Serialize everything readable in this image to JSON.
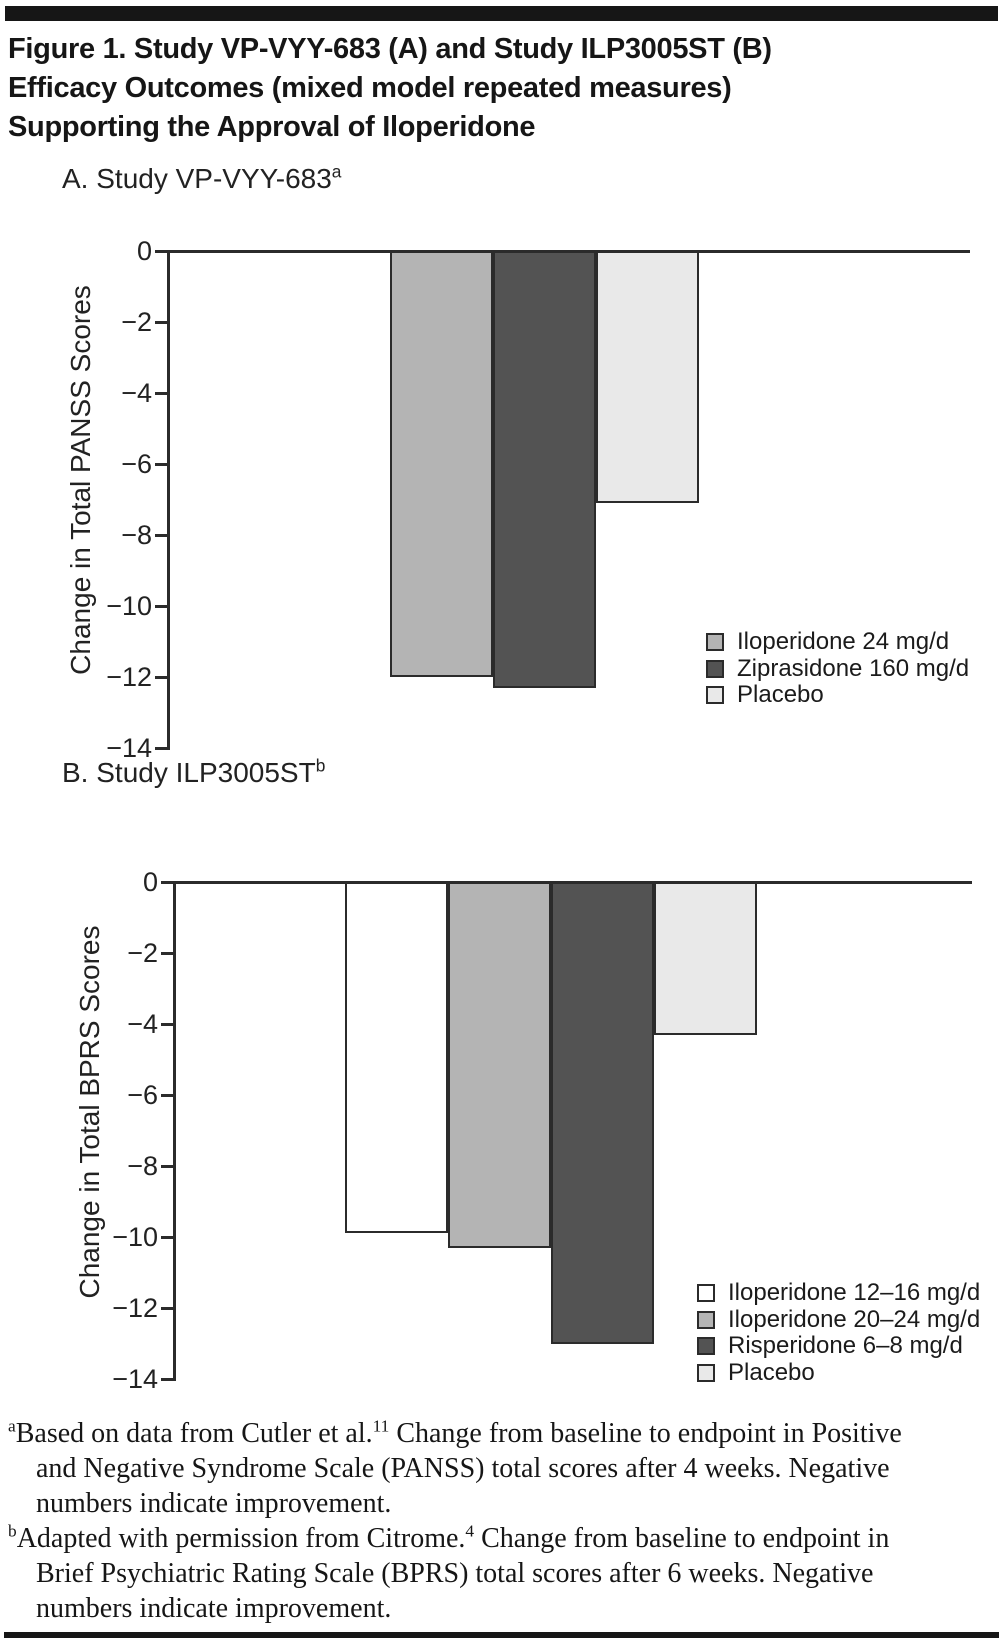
{
  "page": {
    "title_lines": [
      "Figure 1. Study VP-VYY-683 (A) and Study ILP3005ST (B)",
      "Efficacy Outcomes (mixed model repeated measures)",
      "Supporting the Approval of Iloperidone"
    ]
  },
  "chart_data": [
    {
      "type": "bar",
      "panel_label": "A. Study VP-VYY-683",
      "panel_sup": "a",
      "ylabel": "Change in Total PANSS Scores",
      "ylim": [
        0,
        -14
      ],
      "ytick_step": 2,
      "ytick_labels": [
        "0",
        "−2",
        "−4",
        "−6",
        "−8",
        "−10",
        "−12",
        "−14"
      ],
      "grid": false,
      "legend_position": "lower right",
      "categories": [
        "Iloperidone 24 mg/d",
        "Ziprasidone 160 mg/d",
        "Placebo"
      ],
      "values": [
        -12.0,
        -12.3,
        -7.1
      ],
      "colors": [
        "#b4b4b4",
        "#535353",
        "#e9e9e9"
      ],
      "legend": [
        {
          "label": "Iloperidone 24 mg/d",
          "color": "#b4b4b4"
        },
        {
          "label": "Ziprasidone 160 mg/d",
          "color": "#535353"
        },
        {
          "label": "Placebo",
          "color": "#e9e9e9"
        }
      ]
    },
    {
      "type": "bar",
      "panel_label": "B. Study ILP3005ST",
      "panel_sup": "b",
      "ylabel": "Change in Total BPRS Scores",
      "ylim": [
        0,
        -14
      ],
      "ytick_step": 2,
      "ytick_labels": [
        "0",
        "−2",
        "−4",
        "−6",
        "−8",
        "−10",
        "−12",
        "−14"
      ],
      "grid": false,
      "legend_position": "lower right",
      "categories": [
        "Iloperidone 12–16 mg/d",
        "Iloperidone 20–24 mg/d",
        "Risperidone 6–8 mg/d",
        "Placebo"
      ],
      "values": [
        -9.9,
        -10.3,
        -13.0,
        -4.3
      ],
      "colors": [
        "#ffffff",
        "#b4b4b4",
        "#535353",
        "#e9e9e9"
      ],
      "legend": [
        {
          "label": "Iloperidone 12–16 mg/d",
          "color": "#ffffff"
        },
        {
          "label": "Iloperidone 20–24 mg/d",
          "color": "#b4b4b4"
        },
        {
          "label": "Risperidone 6–8 mg/d",
          "color": "#535353"
        },
        {
          "label": "Placebo",
          "color": "#e9e9e9"
        }
      ]
    }
  ],
  "footnotes": [
    {
      "marker": "a",
      "text_before_ref": "Based on data from Cutler et al.",
      "ref": "11",
      "text_after_ref": " Change from baseline to endpoint in Positive and Negative Syndrome Scale (PANSS) total scores after 4 weeks. Negative numbers indicate improvement."
    },
    {
      "marker": "b",
      "text_before_ref": "Adapted with permission from Citrome.",
      "ref": "4",
      "text_after_ref": " Change from baseline to endpoint in Brief Psychiatric Rating Scale (BPRS) total scores after 6 weeks. Negative numbers indicate improvement."
    }
  ]
}
